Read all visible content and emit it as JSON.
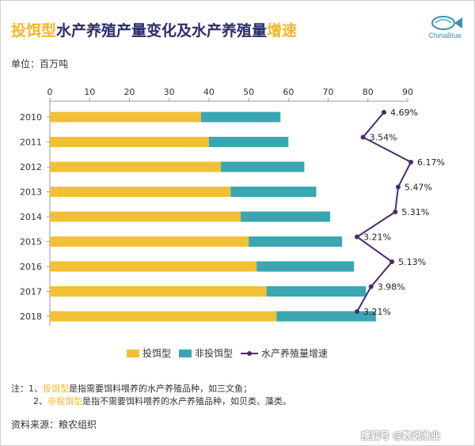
{
  "title": {
    "part1": "投饵型",
    "part2": "水产养殖产量变化及水产养殖量",
    "part3": "增速"
  },
  "logo": {
    "text": "ChinaBlue",
    "icon": "fish-logo-icon",
    "color": "#3b8fb4"
  },
  "unit_label": "单位：百万吨",
  "chart_data": {
    "type": "bar",
    "orientation": "horizontal",
    "stacked": true,
    "categories": [
      "2010",
      "2011",
      "2012",
      "2013",
      "2014",
      "2015",
      "2016",
      "2017",
      "2018"
    ],
    "series": [
      {
        "name": "投饵型",
        "color": "#f2c037",
        "values": [
          38,
          40,
          43,
          45.5,
          48,
          50,
          52,
          54.5,
          57
        ]
      },
      {
        "name": "非投饵型",
        "color": "#3aa6b1",
        "values": [
          20,
          20,
          21,
          21.5,
          22.5,
          23.5,
          24.5,
          25,
          25
        ]
      }
    ],
    "growth": {
      "name": "水产养殖量增速",
      "color": "#4a2c6e",
      "values": [
        4.69,
        3.54,
        6.17,
        5.47,
        5.31,
        3.21,
        5.13,
        3.98,
        3.21
      ],
      "labels": [
        "4.69%",
        "3.54%",
        "6.17%",
        "5.47%",
        "5.31%",
        "3.21%",
        "5.13%",
        "3.98%",
        "3.21%"
      ]
    },
    "xaxis": {
      "min": 0,
      "max": 90,
      "ticks": [
        0,
        10,
        20,
        30,
        40,
        50,
        60,
        70,
        80,
        90
      ],
      "position": "top"
    },
    "grid": false,
    "legend": "bottom"
  },
  "notes": {
    "line1_prefix": "注：1、",
    "line1_term": "投饵型",
    "line1_rest": "是指需要饵料喂养的水产养殖品种，如三文鱼；",
    "line2_prefix": "2、",
    "line2_term": "非投饵型",
    "line2_rest": "是指不需要饵料喂养的水产养殖品种，如贝类、藻类。"
  },
  "source": "资料来源：粮农组织",
  "watermark": "搜狐号 @数说渔业"
}
